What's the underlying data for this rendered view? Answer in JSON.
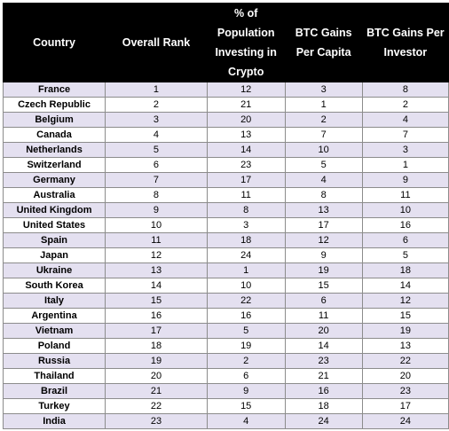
{
  "chart_data": {
    "type": "table",
    "columns": [
      "Country",
      "Overall Rank",
      "% of Population Investing in Crypto",
      "BTC Gains Per Capita",
      "BTC Gains Per Investor"
    ],
    "rows": [
      [
        "France",
        "1",
        "12",
        "3",
        "8"
      ],
      [
        "Czech Republic",
        "2",
        "21",
        "1",
        "2"
      ],
      [
        "Belgium",
        "3",
        "20",
        "2",
        "4"
      ],
      [
        "Canada",
        "4",
        "13",
        "7",
        "7"
      ],
      [
        "Netherlands",
        "5",
        "14",
        "10",
        "3"
      ],
      [
        "Switzerland",
        "6",
        "23",
        "5",
        "1"
      ],
      [
        "Germany",
        "7",
        "17",
        "4",
        "9"
      ],
      [
        "Australia",
        "8",
        "11",
        "8",
        "11"
      ],
      [
        "United Kingdom",
        "9",
        "8",
        "13",
        "10"
      ],
      [
        "United States",
        "10",
        "3",
        "17",
        "16"
      ],
      [
        "Spain",
        "11",
        "18",
        "12",
        "6"
      ],
      [
        "Japan",
        "12",
        "24",
        "9",
        "5"
      ],
      [
        "Ukraine",
        "13",
        "1",
        "19",
        "18"
      ],
      [
        "South Korea",
        "14",
        "10",
        "15",
        "14"
      ],
      [
        "Italy",
        "15",
        "22",
        "6",
        "12"
      ],
      [
        "Argentina",
        "16",
        "16",
        "11",
        "15"
      ],
      [
        "Vietnam",
        "17",
        "5",
        "20",
        "19"
      ],
      [
        "Poland",
        "18",
        "19",
        "14",
        "13"
      ],
      [
        "Russia",
        "19",
        "2",
        "23",
        "22"
      ],
      [
        "Thailand",
        "20",
        "6",
        "21",
        "20"
      ],
      [
        "Brazil",
        "21",
        "9",
        "16",
        "23"
      ],
      [
        "Turkey",
        "22",
        "15",
        "18",
        "17"
      ],
      [
        "India",
        "23",
        "4",
        "24",
        "24"
      ]
    ],
    "header_background": "#000000",
    "header_text_color": "#ffffff",
    "stripe_color": "#e4e0f0"
  }
}
